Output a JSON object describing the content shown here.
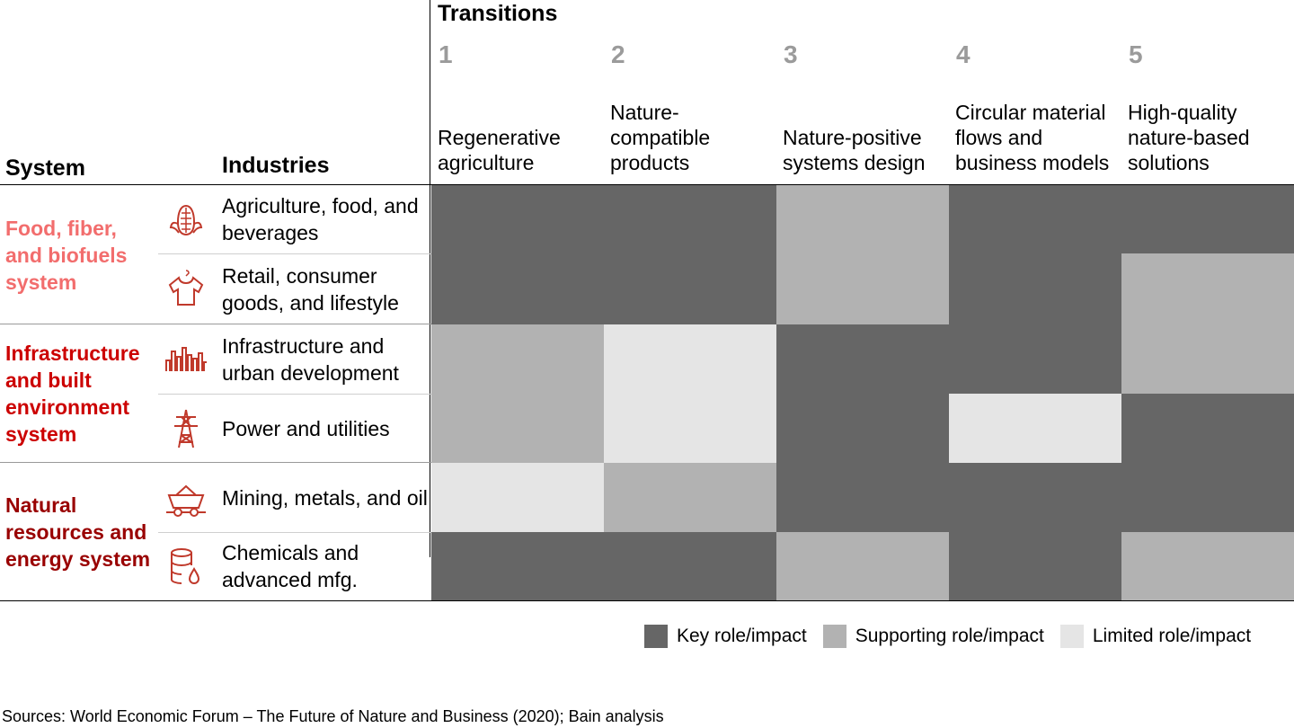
{
  "chart_data": {
    "type": "heatmap",
    "title": "Transitions",
    "row_header": "Industries",
    "system_header": "System",
    "columns": [
      {
        "number": "1",
        "label": "Regenerative agriculture"
      },
      {
        "number": "2",
        "label": "Nature-compatible products"
      },
      {
        "number": "3",
        "label": "Nature-positive systems design"
      },
      {
        "number": "4",
        "label": "Circular material flows and business models"
      },
      {
        "number": "5",
        "label": "High-quality nature-based solutions"
      }
    ],
    "systems": [
      {
        "name": "Food, fiber, and biofuels system",
        "color": "#f26d6d",
        "industries": [
          {
            "name": "Agriculture, food, and beverages",
            "icon": "corn-icon",
            "values": [
              "key",
              "key",
              "supporting",
              "key",
              "key"
            ]
          },
          {
            "name": "Retail, consumer goods, and lifestyle",
            "icon": "shirt-icon",
            "values": [
              "key",
              "key",
              "supporting",
              "key",
              "supporting"
            ]
          }
        ]
      },
      {
        "name": "Infrastructure and built environment system",
        "color": "#cc0000",
        "industries": [
          {
            "name": "Infrastructure and urban development",
            "icon": "city-icon",
            "values": [
              "supporting",
              "limited",
              "key",
              "key",
              "supporting"
            ]
          },
          {
            "name": "Power and utilities",
            "icon": "power-tower-icon",
            "values": [
              "supporting",
              "limited",
              "key",
              "limited",
              "key"
            ]
          }
        ]
      },
      {
        "name": "Natural resources and energy system",
        "color": "#990000",
        "industries": [
          {
            "name": "Mining, metals, and oil",
            "icon": "mine-cart-icon",
            "values": [
              "limited",
              "supporting",
              "key",
              "key",
              "key"
            ]
          },
          {
            "name": "Chemicals and advanced mfg.",
            "icon": "chemical-barrel-icon",
            "values": [
              "key",
              "key",
              "supporting",
              "key",
              "supporting"
            ]
          }
        ]
      }
    ],
    "legend": [
      {
        "key": "key",
        "label": "Key role/impact",
        "color": "#666666"
      },
      {
        "key": "supporting",
        "label": "Supporting role/impact",
        "color": "#b2b2b2"
      },
      {
        "key": "limited",
        "label": "Limited role/impact",
        "color": "#e5e5e5"
      }
    ],
    "legend_position": "bottom-right"
  },
  "source_note": "Sources: World Economic Forum – The Future of Nature and Business (2020); Bain analysis"
}
